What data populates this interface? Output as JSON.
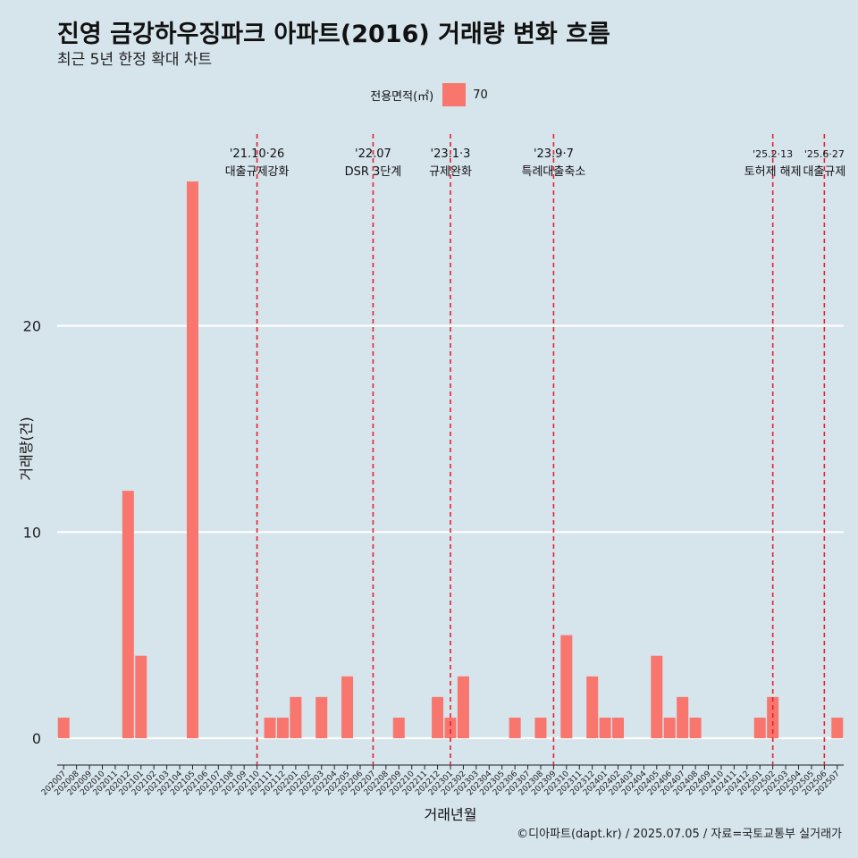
{
  "chart_data": {
    "type": "bar",
    "title": "진영 금강하우징파크 아파트(2016) 거래량 변화 흐름",
    "subtitle": "최근 5년 한정 확대 차트",
    "xlabel": "거래년월",
    "ylabel": "거래량(건)",
    "caption": "©디아파트(dapt.kr) / 2025.07.05 / 자료=국토교통부 실거래가",
    "legend": {
      "title": "전용면적(㎡)",
      "position": "top",
      "entries": [
        {
          "label": "70",
          "color": "#f8766d"
        }
      ]
    },
    "ylim": [
      -1.3,
      29.3
    ],
    "y_ticks": [
      0,
      10,
      20
    ],
    "y_tick_labels": [
      "0",
      "10",
      "20"
    ],
    "bar_color": "#f8766d",
    "categories": [
      "202007",
      "202008",
      "202009",
      "202010",
      "202011",
      "202012",
      "202101",
      "202102",
      "202103",
      "202104",
      "202105",
      "202106",
      "202107",
      "202108",
      "202109",
      "202110",
      "202111",
      "202112",
      "202201",
      "202202",
      "202203",
      "202204",
      "202205",
      "202206",
      "202207",
      "202208",
      "202209",
      "202210",
      "202211",
      "202212",
      "202301",
      "202302",
      "202303",
      "202304",
      "202305",
      "202306",
      "202307",
      "202308",
      "202309",
      "202310",
      "202311",
      "202312",
      "202401",
      "202402",
      "202403",
      "202404",
      "202405",
      "202406",
      "202407",
      "202408",
      "202409",
      "202410",
      "202411",
      "202412",
      "202501",
      "202502",
      "202503",
      "202504",
      "202505",
      "202506",
      "202507"
    ],
    "values": [
      1,
      0,
      0,
      0,
      0,
      12,
      4,
      0,
      0,
      0,
      27,
      0,
      0,
      0,
      0,
      0,
      1,
      1,
      2,
      0,
      2,
      0,
      3,
      0,
      0,
      0,
      1,
      0,
      0,
      2,
      1,
      3,
      0,
      0,
      0,
      1,
      0,
      1,
      0,
      5,
      0,
      3,
      1,
      1,
      0,
      0,
      4,
      1,
      2,
      1,
      0,
      0,
      0,
      0,
      1,
      2,
      0,
      0,
      0,
      0,
      1
    ],
    "annotations": [
      {
        "position": "202110",
        "date": "'21.10·26",
        "label": "대출규제강화"
      },
      {
        "position": "202207",
        "date": "'22.07",
        "label": "DSR 3단계"
      },
      {
        "position": "202301",
        "date": "'23.1·3",
        "label": "규제완화"
      },
      {
        "position": "202309",
        "date": "'23.9·7",
        "label": "특례대출축소"
      },
      {
        "position": "202502",
        "date": "'25.2·13",
        "label": "토허제 해제"
      },
      {
        "position": "202506",
        "date": "'25.6·27",
        "label": "대출규제"
      }
    ],
    "grid": true
  }
}
